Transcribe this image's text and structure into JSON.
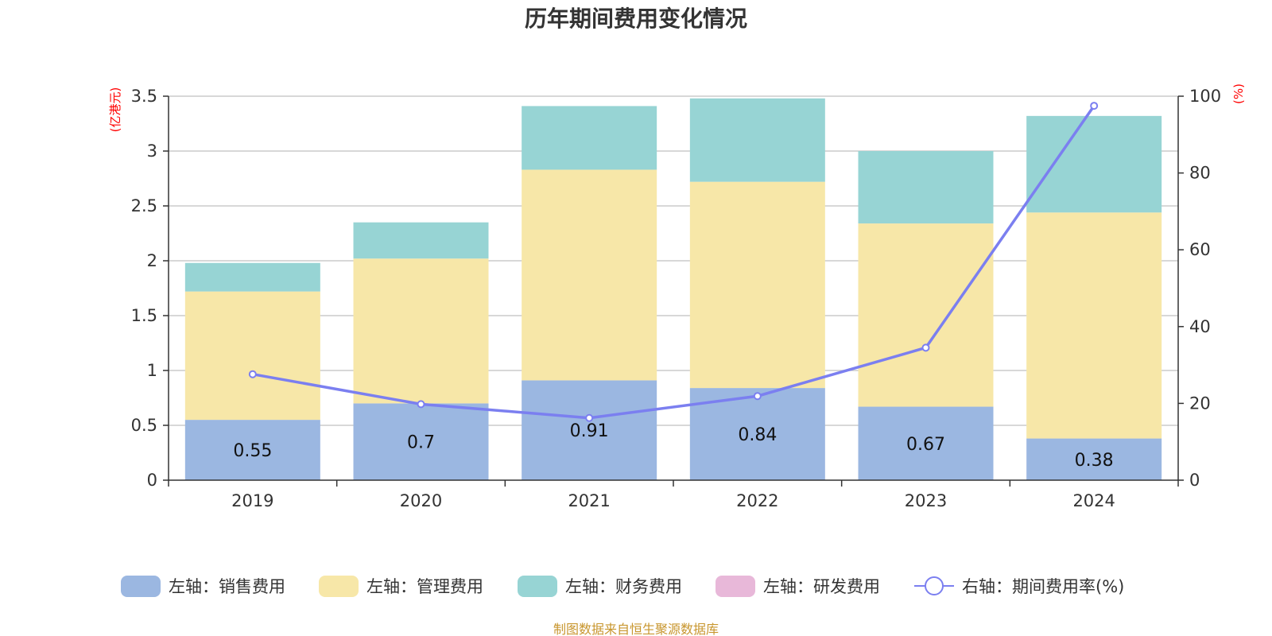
{
  "chart_data": {
    "type": "bar",
    "title": "历年期间费用变化情况",
    "categories": [
      "2019",
      "2020",
      "2021",
      "2022",
      "2023",
      "2024"
    ],
    "series": [
      {
        "name": "左轴：销售费用",
        "axis": "left",
        "kind": "bar",
        "color": "#9bb7e1",
        "values": [
          0.55,
          0.7,
          0.91,
          0.84,
          0.67,
          0.38
        ]
      },
      {
        "name": "左轴：管理费用",
        "axis": "left",
        "kind": "bar",
        "color": "#f7e7a8",
        "values": [
          1.17,
          1.32,
          1.92,
          1.88,
          1.67,
          2.06
        ]
      },
      {
        "name": "左轴：财务费用",
        "axis": "left",
        "kind": "bar",
        "color": "#97d4d4",
        "values": [
          0.26,
          0.33,
          0.58,
          0.76,
          0.66,
          0.88
        ]
      },
      {
        "name": "左轴：研发费用",
        "axis": "left",
        "kind": "bar",
        "color": "#e8b8d9",
        "values": [
          0,
          0,
          0,
          0,
          0,
          0
        ]
      },
      {
        "name": "右轴：期间费用率(%)",
        "axis": "right",
        "kind": "line",
        "color": "#7b7ff0",
        "values": [
          27.6,
          19.8,
          16.2,
          21.9,
          34.5,
          97.5
        ]
      }
    ],
    "data_labels": [
      "0.55",
      "0.7",
      "0.91",
      "0.84",
      "0.67",
      "0.38"
    ],
    "left_axis": {
      "unit": "(亿港元)",
      "ylim": [
        0,
        3.5
      ],
      "ticks": [
        "0",
        "0.5",
        "1",
        "1.5",
        "2",
        "2.5",
        "3",
        "3.5"
      ]
    },
    "right_axis": {
      "unit": "(%)",
      "ylim": [
        0,
        100
      ],
      "ticks": [
        "0",
        "20",
        "40",
        "60",
        "80",
        "100"
      ]
    },
    "grid": true,
    "legend_position": "bottom"
  },
  "source": "制图数据来自恒生聚源数据库"
}
